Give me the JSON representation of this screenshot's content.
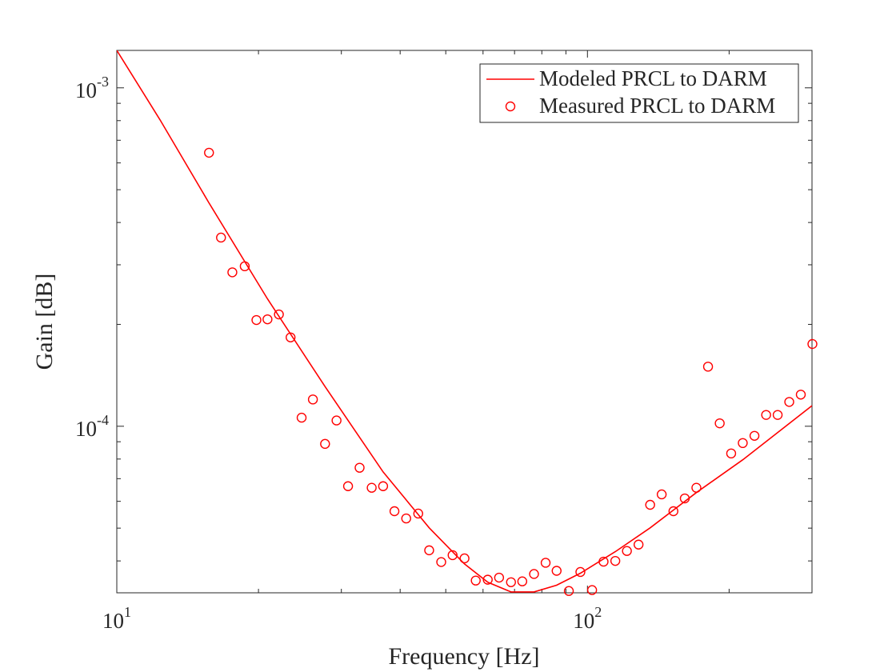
{
  "chart_data": {
    "type": "scatter",
    "xlabel": "Frequency [Hz]",
    "ylabel": "Gain [dB]",
    "xscale": "log",
    "yscale": "log",
    "xlim": [
      10,
      300
    ],
    "ylim": [
      3.22e-05,
      0.00129
    ],
    "xticks": [
      {
        "value": 10,
        "label": "10^1"
      },
      {
        "value": 100,
        "label": "10^2"
      }
    ],
    "yticks": [
      {
        "value": 0.0001,
        "label": "10^-4"
      },
      {
        "value": 0.001,
        "label": "10^-3"
      }
    ],
    "minor_ticks": true,
    "box": true,
    "grid": false,
    "legend": "upper right",
    "series": [
      {
        "name": "Modeled PRCL to DARM",
        "style": "line",
        "color": "#ff0000",
        "x": [
          10,
          12.36,
          15.7,
          20.9,
          27.7,
          36.8,
          46.1,
          54.8,
          61.4,
          68.8,
          77.0,
          86.0,
          96.6,
          114.6,
          135.9,
          170.4,
          213.8,
          300
        ],
        "values": [
          0.00129,
          0.000804,
          0.000457,
          0.000238,
          0.000131,
          7.33e-05,
          5.01e-05,
          3.92e-05,
          3.46e-05,
          3.24e-05,
          3.24e-05,
          3.39e-05,
          3.68e-05,
          4.26e-05,
          5.01e-05,
          6.37e-05,
          7.96e-05,
          0.000115
        ]
      },
      {
        "name": "Measured PRCL to DARM",
        "style": "marker",
        "color": "#ff0000",
        "x": [
          15.7,
          16.65,
          17.6,
          18.7,
          19.8,
          20.9,
          22.1,
          23.4,
          24.7,
          26.1,
          27.7,
          29.3,
          31.0,
          32.8,
          34.8,
          36.8,
          38.9,
          41.2,
          43.7,
          46.1,
          48.9,
          51.7,
          54.8,
          57.9,
          61.4,
          64.9,
          68.8,
          72.7,
          77.0,
          81.5,
          86.0,
          91.3,
          96.6,
          102.3,
          108.2,
          114.6,
          121.3,
          128.4,
          135.9,
          143.8,
          152.3,
          161.0,
          170.4,
          180.4,
          191.0,
          202.0,
          213.8,
          226.4,
          239.7,
          253.6,
          268.4,
          284.0,
          300.6
        ],
        "values": [
          0.000643,
          0.000361,
          0.000285,
          0.000297,
          0.000206,
          0.000207,
          0.000214,
          0.000183,
          0.000106,
          0.00012,
          8.87e-05,
          0.000104,
          6.65e-05,
          7.54e-05,
          6.58e-05,
          6.65e-05,
          5.61e-05,
          5.34e-05,
          5.52e-05,
          4.3e-05,
          3.97e-05,
          4.16e-05,
          4.07e-05,
          3.5e-05,
          3.52e-05,
          3.57e-05,
          3.46e-05,
          3.48e-05,
          3.66e-05,
          3.95e-05,
          3.74e-05,
          3.26e-05,
          3.71e-05,
          3.28e-05,
          3.98e-05,
          4e-05,
          4.28e-05,
          4.47e-05,
          5.86e-05,
          6.29e-05,
          5.61e-05,
          6.12e-05,
          6.58e-05,
          0.00015,
          0.000102,
          8.31e-05,
          8.92e-05,
          9.37e-05,
          0.000108,
          0.000108,
          0.000118,
          0.000124,
          0.000175
        ]
      }
    ]
  }
}
